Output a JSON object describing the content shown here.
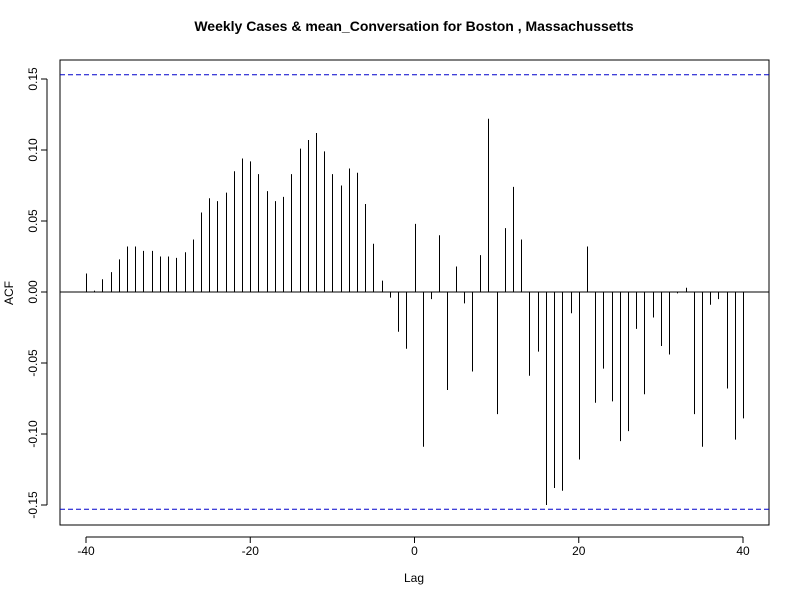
{
  "chart_data": {
    "type": "bar",
    "title": "Weekly Cases & mean_Conversation for Boston , Massachussetts",
    "xlabel": "Lag",
    "ylabel": "ACF",
    "xlim": [
      -40,
      40
    ],
    "ylim": [
      -0.165,
      0.165
    ],
    "x_ticks": [
      -40,
      -20,
      0,
      20,
      40
    ],
    "x_tick_labels": [
      "-40",
      "-20",
      "0",
      "20",
      "40"
    ],
    "y_ticks": [
      -0.15,
      -0.1,
      -0.05,
      0.0,
      0.05,
      0.1,
      0.15
    ],
    "y_tick_labels": [
      "-0.15",
      "-0.10",
      "-0.05",
      "0.00",
      "0.05",
      "0.10",
      "0.15"
    ],
    "confidence_bounds": [
      0.153,
      -0.153
    ],
    "confidence_line_color": "#0000cc",
    "bar_color": "#000000",
    "lags": [
      -40,
      -39,
      -38,
      -37,
      -36,
      -35,
      -34,
      -33,
      -32,
      -31,
      -30,
      -29,
      -28,
      -27,
      -26,
      -25,
      -24,
      -23,
      -22,
      -21,
      -20,
      -19,
      -18,
      -17,
      -16,
      -15,
      -14,
      -13,
      -12,
      -11,
      -10,
      -9,
      -8,
      -7,
      -6,
      -5,
      -4,
      -3,
      -2,
      -1,
      0,
      1,
      2,
      3,
      4,
      5,
      6,
      7,
      8,
      9,
      10,
      11,
      12,
      13,
      14,
      15,
      16,
      17,
      18,
      19,
      20,
      21,
      22,
      23,
      24,
      25,
      26,
      27,
      28,
      29,
      30,
      31,
      32,
      33,
      34,
      35,
      36,
      37,
      38,
      39,
      40
    ],
    "acf": [
      0.013,
      0.001,
      0.009,
      0.014,
      0.023,
      0.032,
      0.032,
      0.029,
      0.029,
      0.025,
      0.025,
      0.024,
      0.028,
      0.037,
      0.056,
      0.066,
      0.064,
      0.07,
      0.085,
      0.094,
      0.092,
      0.083,
      0.071,
      0.064,
      0.067,
      0.083,
      0.101,
      0.107,
      0.112,
      0.099,
      0.083,
      0.075,
      0.087,
      0.084,
      0.062,
      0.034,
      0.008,
      -0.004,
      -0.028,
      -0.04,
      0.048,
      -0.109,
      -0.005,
      0.04,
      -0.069,
      0.018,
      -0.008,
      -0.056,
      0.026,
      0.122,
      -0.086,
      0.045,
      0.074,
      0.037,
      -0.059,
      -0.042,
      -0.15,
      -0.138,
      -0.14,
      -0.015,
      -0.118,
      0.032,
      -0.078,
      -0.054,
      -0.077,
      -0.105,
      -0.098,
      -0.026,
      -0.072,
      -0.018,
      -0.038,
      -0.044,
      -0.001,
      0.003,
      -0.086,
      -0.109,
      -0.009,
      -0.005,
      -0.068,
      -0.104,
      -0.089
    ]
  }
}
